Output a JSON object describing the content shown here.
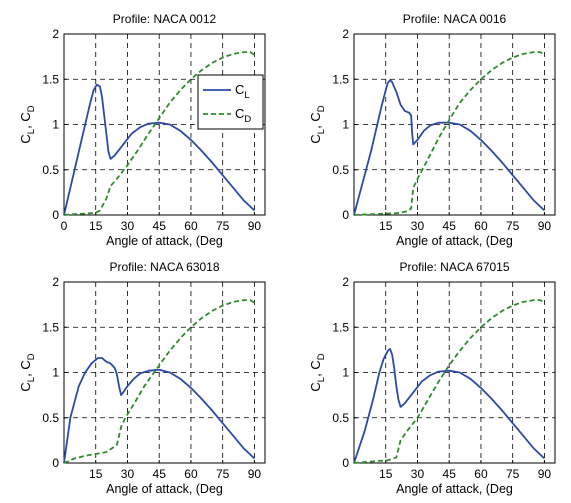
{
  "chart_data": [
    {
      "type": "line",
      "title": "Profile: NACA 0012",
      "xlabel": "Angle of attack, (Deg",
      "ylabel": {
        "main": "C",
        "sub1": "L",
        "sep": ", C",
        "sub2": "D"
      },
      "xlim": [
        0,
        95
      ],
      "ylim": [
        0,
        2
      ],
      "xticks": [
        0,
        15,
        30,
        45,
        60,
        75,
        90
      ],
      "yticks": [
        0,
        0.5,
        1,
        1.5,
        2
      ],
      "ytick_labels": [
        "0",
        "0.5",
        "1",
        "1.5",
        "2"
      ],
      "grid": true,
      "legend": {
        "position": "upper-right",
        "entries": [
          {
            "main": "C",
            "sub": "L",
            "color": "#2b4aa8",
            "style": "solid"
          },
          {
            "main": "C",
            "sub": "D",
            "color": "#2e8b2e",
            "style": "dashed"
          }
        ]
      },
      "series": [
        {
          "key": "CL",
          "color": "#2b4aa8",
          "style": "solid",
          "x": [
            0,
            4,
            8,
            12,
            14,
            15.5,
            17,
            18,
            19,
            20,
            21,
            22,
            24,
            28,
            32,
            36,
            40,
            45,
            50,
            55,
            60,
            65,
            70,
            75,
            80,
            85,
            90
          ],
          "y": [
            0,
            0.4,
            0.8,
            1.2,
            1.38,
            1.44,
            1.42,
            1.3,
            1.1,
            0.9,
            0.7,
            0.62,
            0.66,
            0.78,
            0.9,
            0.97,
            1.01,
            1.02,
            1.0,
            0.93,
            0.83,
            0.71,
            0.58,
            0.44,
            0.3,
            0.16,
            0.05
          ]
        },
        {
          "key": "CD",
          "color": "#2e8b2e",
          "style": "dashed",
          "x": [
            0,
            5,
            10,
            15,
            17,
            20,
            22,
            25,
            30,
            35,
            40,
            45,
            50,
            55,
            60,
            65,
            70,
            75,
            80,
            85,
            88,
            90
          ],
          "y": [
            0,
            0.01,
            0.015,
            0.025,
            0.05,
            0.18,
            0.32,
            0.4,
            0.55,
            0.72,
            0.9,
            1.07,
            1.24,
            1.38,
            1.5,
            1.6,
            1.68,
            1.74,
            1.78,
            1.8,
            1.8,
            1.77
          ]
        }
      ]
    },
    {
      "type": "line",
      "title": "Profile: NACA 0016",
      "xlabel": "Angle of attack, (Deg",
      "ylabel": {
        "main": "C",
        "sub1": "L",
        "sep": ", C",
        "sub2": "D"
      },
      "xlim": [
        0,
        95
      ],
      "ylim": [
        0,
        2
      ],
      "xticks": [
        15,
        30,
        45,
        60,
        75,
        90
      ],
      "yticks": [
        0,
        0.5,
        1,
        1.5,
        2
      ],
      "ytick_labels": [
        "0",
        "0.5",
        "1",
        "1.5",
        "2"
      ],
      "grid": true,
      "series": [
        {
          "key": "CL",
          "color": "#2b4aa8",
          "style": "solid",
          "x": [
            0,
            4,
            8,
            11,
            13,
            15,
            16,
            17,
            18,
            20,
            22,
            24,
            25,
            26,
            27,
            27.5,
            28,
            30,
            33,
            36,
            40,
            45,
            50,
            55,
            60,
            65,
            70,
            75,
            80,
            85,
            90
          ],
          "y": [
            0,
            0.35,
            0.7,
            1.0,
            1.2,
            1.38,
            1.46,
            1.49,
            1.47,
            1.36,
            1.22,
            1.15,
            1.14,
            1.13,
            1.1,
            0.9,
            0.78,
            0.83,
            0.93,
            0.99,
            1.02,
            1.02,
            1.0,
            0.93,
            0.83,
            0.71,
            0.58,
            0.44,
            0.3,
            0.16,
            0.05
          ]
        },
        {
          "key": "CD",
          "color": "#2e8b2e",
          "style": "dashed",
          "x": [
            0,
            10,
            20,
            25,
            27,
            28,
            30,
            35,
            40,
            45,
            50,
            55,
            60,
            65,
            70,
            75,
            80,
            85,
            88,
            90
          ],
          "y": [
            0,
            0.01,
            0.02,
            0.04,
            0.07,
            0.3,
            0.4,
            0.62,
            0.85,
            1.05,
            1.24,
            1.38,
            1.5,
            1.6,
            1.68,
            1.74,
            1.78,
            1.8,
            1.8,
            1.77
          ]
        }
      ]
    },
    {
      "type": "line",
      "title": "Profile: NACA 63018",
      "xlabel": "Angle of attack, (Deg",
      "ylabel": {
        "main": "C",
        "sub1": "L",
        "sep": ", C",
        "sub2": "D"
      },
      "xlim": [
        0,
        95
      ],
      "ylim": [
        0,
        2
      ],
      "xticks": [
        15,
        30,
        45,
        60,
        75,
        90
      ],
      "yticks": [
        0,
        0.5,
        1,
        1.5,
        2
      ],
      "ytick_labels": [
        "0",
        "0.5",
        "1",
        "1.5",
        "2"
      ],
      "grid": true,
      "series": [
        {
          "key": "CL",
          "color": "#2b4aa8",
          "style": "solid",
          "x": [
            0,
            3,
            7,
            10,
            13,
            16,
            18,
            20,
            22,
            24,
            25,
            26,
            27,
            28,
            30,
            33,
            36,
            40,
            45,
            50,
            55,
            60,
            65,
            70,
            75,
            80,
            85,
            90
          ],
          "y": [
            0,
            0.5,
            0.85,
            1.0,
            1.1,
            1.16,
            1.16,
            1.12,
            1.1,
            1.05,
            0.98,
            0.85,
            0.75,
            0.78,
            0.85,
            0.93,
            0.99,
            1.02,
            1.03,
            1.0,
            0.93,
            0.83,
            0.71,
            0.58,
            0.44,
            0.3,
            0.16,
            0.05
          ]
        },
        {
          "key": "CD",
          "color": "#2e8b2e",
          "style": "dashed",
          "x": [
            0,
            5,
            10,
            20,
            25,
            27,
            29,
            33,
            38,
            45,
            50,
            55,
            60,
            65,
            70,
            75,
            80,
            85,
            88,
            90
          ],
          "y": [
            0,
            0.05,
            0.08,
            0.12,
            0.2,
            0.4,
            0.5,
            0.65,
            0.85,
            1.08,
            1.24,
            1.38,
            1.5,
            1.6,
            1.68,
            1.74,
            1.78,
            1.8,
            1.8,
            1.77
          ]
        }
      ]
    },
    {
      "type": "line",
      "title": "Profile: NACA 67015",
      "xlabel": "Angle of attack, (Deg",
      "ylabel": {
        "main": "C",
        "sub1": "L",
        "sep": ", C",
        "sub2": "D"
      },
      "xlim": [
        0,
        95
      ],
      "ylim": [
        0,
        2
      ],
      "xticks": [
        15,
        30,
        45,
        60,
        75,
        90
      ],
      "yticks": [
        0,
        0.5,
        1,
        1.5,
        2
      ],
      "ytick_labels": [
        "0",
        "0.5",
        "1",
        "1.5",
        "2"
      ],
      "grid": true,
      "series": [
        {
          "key": "CL",
          "color": "#2b4aa8",
          "style": "solid",
          "x": [
            0,
            5,
            9,
            12,
            14,
            16,
            17,
            18,
            19,
            20,
            21,
            22,
            24,
            28,
            32,
            36,
            40,
            45,
            50,
            55,
            60,
            65,
            70,
            75,
            80,
            85,
            90
          ],
          "y": [
            0,
            0.35,
            0.7,
            1.0,
            1.15,
            1.24,
            1.26,
            1.2,
            1.05,
            0.85,
            0.7,
            0.62,
            0.66,
            0.78,
            0.9,
            0.97,
            1.01,
            1.02,
            1.0,
            0.93,
            0.83,
            0.71,
            0.58,
            0.44,
            0.3,
            0.16,
            0.05
          ]
        },
        {
          "key": "CD",
          "color": "#2e8b2e",
          "style": "dashed",
          "x": [
            0,
            10,
            16,
            20,
            22,
            25,
            30,
            35,
            40,
            45,
            50,
            55,
            60,
            65,
            70,
            75,
            80,
            85,
            88,
            90
          ],
          "y": [
            0,
            0.02,
            0.03,
            0.06,
            0.25,
            0.35,
            0.5,
            0.7,
            0.9,
            1.08,
            1.24,
            1.38,
            1.5,
            1.6,
            1.68,
            1.74,
            1.78,
            1.8,
            1.8,
            1.77
          ]
        }
      ]
    }
  ]
}
